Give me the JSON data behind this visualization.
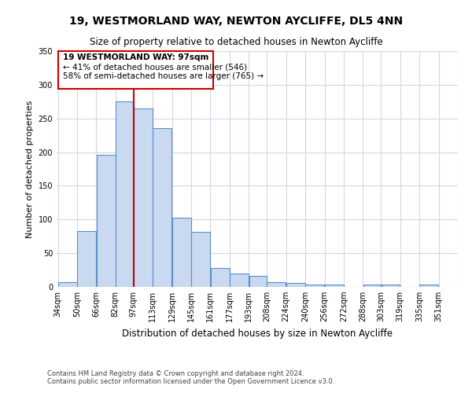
{
  "title1": "19, WESTMORLAND WAY, NEWTON AYCLIFFE, DL5 4NN",
  "title2": "Size of property relative to detached houses in Newton Aycliffe",
  "xlabel": "Distribution of detached houses by size in Newton Aycliffe",
  "ylabel": "Number of detached properties",
  "footer1": "Contains HM Land Registry data © Crown copyright and database right 2024.",
  "footer2": "Contains public sector information licensed under the Open Government Licence v3.0.",
  "annotation_line1": "19 WESTMORLAND WAY: 97sqm",
  "annotation_line2": "← 41% of detached houses are smaller (546)",
  "annotation_line3": "58% of semi-detached houses are larger (765) →",
  "bar_color": "#c9d9f0",
  "bar_edge_color": "#5b8fc9",
  "vline_color": "#cc0000",
  "vline_x": 97,
  "categories": [
    "34sqm",
    "50sqm",
    "66sqm",
    "82sqm",
    "97sqm",
    "113sqm",
    "129sqm",
    "145sqm",
    "161sqm",
    "177sqm",
    "193sqm",
    "208sqm",
    "224sqm",
    "240sqm",
    "256sqm",
    "272sqm",
    "288sqm",
    "303sqm",
    "319sqm",
    "335sqm",
    "351sqm"
  ],
  "bin_edges": [
    34,
    50,
    66,
    82,
    97,
    113,
    129,
    145,
    161,
    177,
    193,
    208,
    224,
    240,
    256,
    272,
    288,
    303,
    319,
    335,
    351
  ],
  "values": [
    7,
    83,
    196,
    275,
    265,
    236,
    103,
    82,
    28,
    20,
    16,
    7,
    6,
    4,
    4,
    0,
    3,
    4,
    0,
    4
  ],
  "ylim": [
    0,
    350
  ],
  "yticks": [
    0,
    50,
    100,
    150,
    200,
    250,
    300,
    350
  ],
  "background_color": "#ffffff",
  "grid_color": "#d0d8e8"
}
